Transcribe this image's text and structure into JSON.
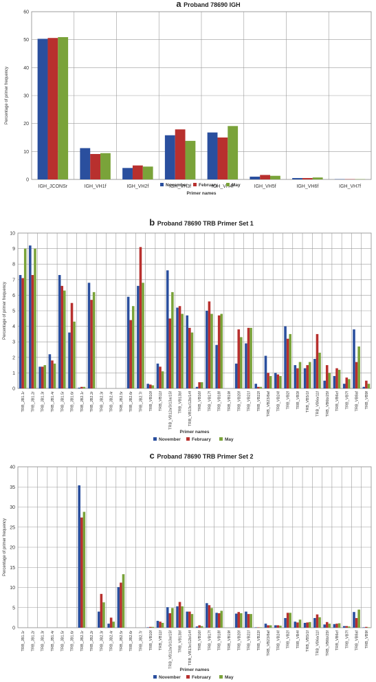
{
  "colors": {
    "november": "#2a4f9e",
    "february": "#b8302e",
    "may": "#7aa33a"
  },
  "legend": [
    "November",
    "February",
    "May"
  ],
  "chart_data": [
    {
      "panel": "a",
      "type": "bar",
      "title": "Proband 78690 IGH",
      "xlabel": "Primer names",
      "ylabel": "Percentage of primer frequency",
      "ylim": [
        0,
        60
      ],
      "yticks": [
        0,
        10,
        20,
        30,
        40,
        50,
        60
      ],
      "grid": true,
      "legend_position": "bottom",
      "categories": [
        "IGH_JCONSr",
        "IGH_VH1f",
        "IGH_VH2f",
        "IGH_VH3f",
        "IGH_VH4f",
        "IGH_VH5f",
        "IGH_VH6f",
        "IGH_VH7f"
      ],
      "series": [
        {
          "name": "November",
          "values": [
            50.3,
            11.2,
            4.1,
            15.8,
            16.8,
            1.0,
            0.5,
            0.1
          ]
        },
        {
          "name": "February",
          "values": [
            50.6,
            9.1,
            5.0,
            17.9,
            15.0,
            1.6,
            0.5,
            0.1
          ]
        },
        {
          "name": "May",
          "values": [
            50.9,
            9.4,
            4.6,
            13.8,
            19.1,
            1.3,
            0.7,
            0.1
          ]
        }
      ]
    },
    {
      "panel": "b",
      "type": "bar",
      "title": "Proband 78690 TRB Primer Set 1",
      "xlabel": "Primer names",
      "ylabel": "Percentage of primer frequency",
      "ylim": [
        0,
        10
      ],
      "yticks": [
        0,
        1,
        2,
        3,
        4,
        5,
        6,
        7,
        8,
        9,
        10
      ],
      "grid": true,
      "legend_position": "bottom",
      "categories": [
        "TRB_JB1.1r",
        "TRB_JB1.2r",
        "TRB_JB1.3r",
        "TRB_JB1.4r",
        "TRB_JB1.5r",
        "TRB_JB1.6r",
        "TRB_JB2.1r",
        "TRB_JB2.2r",
        "TRB_JB2.3r",
        "TRB_JB2.4r",
        "TRB_JB2.5r",
        "TRB_JB2.6r",
        "TRB_JB2.7r",
        "TRB_VB10f",
        "TRB_VB11f",
        "TRB_VB12a/3/13a/15f",
        "TRB_VB13bf",
        "TRB_VB13c/12b/14f",
        "TRB_VB16f",
        "TRB_VB17f",
        "TRB_VB18f",
        "TRB_VB19f",
        "TRB_VB20f",
        "TRB_VB21f",
        "TRB_VB22f",
        "TRB_VB23/8af",
        "TRB_VB24f",
        "TRB_VB2f",
        "TRB_VB3f",
        "TRB_VB5/1f",
        "TRB_VB6a/11f",
        "TRB_VB6b/25f",
        "TRB_VB6cf",
        "TRB_VB7f",
        "TRB_VB8af",
        "TRB_VB9f"
      ],
      "series": [
        {
          "name": "November",
          "values": [
            7.3,
            9.2,
            1.4,
            2.2,
            7.3,
            3.6,
            0.05,
            6.8,
            0,
            0,
            0,
            5.9,
            6.6,
            0.3,
            1.6,
            7.6,
            5.2,
            4.7,
            0.1,
            5.0,
            2.8,
            0,
            1.6,
            2.9,
            0.3,
            2.1,
            1.0,
            4.0,
            1.5,
            1.3,
            1.9,
            0.5,
            0.8,
            0.3,
            3.8,
            0.1
          ]
        },
        {
          "name": "February",
          "values": [
            7.1,
            7.3,
            1.4,
            1.8,
            6.6,
            5.5,
            0.1,
            5.7,
            0,
            0,
            0,
            4.4,
            9.1,
            0.25,
            1.4,
            4.5,
            5.3,
            3.9,
            0.4,
            5.6,
            4.7,
            0,
            3.8,
            3.9,
            0.1,
            1.0,
            0.9,
            3.2,
            1.3,
            1.5,
            3.5,
            1.5,
            1.3,
            0.7,
            1.7,
            0.5
          ]
        },
        {
          "name": "May",
          "values": [
            9.0,
            9.0,
            1.5,
            1.6,
            6.3,
            4.3,
            0.1,
            6.2,
            0,
            0,
            0,
            5.3,
            6.8,
            0.2,
            1.1,
            6.2,
            4.8,
            3.6,
            0.4,
            4.8,
            4.8,
            0,
            3.3,
            3.9,
            0.1,
            0.8,
            0.8,
            3.5,
            1.7,
            1.7,
            2.3,
            1.0,
            1.2,
            0.6,
            2.7,
            0.3
          ]
        }
      ]
    },
    {
      "panel": "c",
      "type": "bar",
      "title": "Proband 78690 TRB Primer Set 2",
      "xlabel": "Primer names",
      "ylabel": "Percentage of primer frequency",
      "ylim": [
        0,
        40
      ],
      "yticks": [
        0,
        5,
        10,
        15,
        20,
        25,
        30,
        35,
        40
      ],
      "grid": true,
      "legend_position": "bottom",
      "categories": [
        "TRB_JB1.1r",
        "TRB_JB1.2r",
        "TRB_JB1.3r",
        "TRB_JB1.4r",
        "TRB_JB1.5r",
        "TRB_JB1.6r",
        "TRB_JB2.1r",
        "TRB_JB2.2r",
        "TRB_JB2.3r",
        "TRB_JB2.4r",
        "TRB_JB2.5r",
        "TRB_JB2.6r",
        "TRB_JB2.7r",
        "TRB_VB10f",
        "TRB_VB11f",
        "TRB_VB12a/3/13a/15f",
        "TRB_VB13bf",
        "TRB_VB13c/12b/14f",
        "TRB_VB16f",
        "TRB_VB17f",
        "TRB_VB18f",
        "TRB_VB19f",
        "TRB_VB20f",
        "TRB_VB21f",
        "TRB_VB22f",
        "TRB_VB23/8af",
        "TRB_VB24f",
        "TRB_VB2f",
        "TRB_VB4f",
        "TRB_VB5/1f",
        "TRB_VB6a/11f",
        "TRB_VB6b/25f",
        "TRB_VB6cf",
        "TRB_VB7f",
        "TRB_VB8af",
        "TRB_VB9f"
      ],
      "series": [
        {
          "name": "November",
          "values": [
            0,
            0,
            0,
            0,
            0,
            0,
            35.4,
            0,
            4.0,
            1.0,
            10.1,
            0,
            0,
            0.1,
            1.7,
            5.1,
            5.3,
            4.0,
            0.3,
            6.1,
            3.7,
            0,
            3.5,
            4.0,
            0.1,
            1.0,
            0.6,
            2.4,
            1.5,
            1.2,
            2.4,
            0.8,
            0.9,
            0.4,
            3.9,
            0.1
          ]
        },
        {
          "name": "February",
          "values": [
            0,
            0,
            0,
            0,
            0,
            0,
            27.4,
            0,
            8.4,
            2.5,
            11.2,
            0,
            0,
            0.2,
            1.5,
            3.6,
            6.4,
            4.0,
            0.6,
            5.6,
            3.6,
            0,
            3.9,
            3.4,
            0.1,
            0.6,
            0.6,
            3.7,
            1.3,
            1.3,
            3.3,
            1.4,
            1.0,
            0.4,
            2.4,
            0.2
          ]
        },
        {
          "name": "May",
          "values": [
            0,
            0,
            0,
            0,
            0,
            0,
            28.8,
            0,
            6.3,
            1.5,
            13.3,
            0,
            0,
            0.2,
            1.2,
            4.9,
            5.3,
            3.4,
            0.4,
            4.9,
            4.2,
            0,
            3.6,
            3.4,
            0.1,
            0.6,
            0.5,
            3.7,
            2.0,
            1.4,
            2.6,
            1.0,
            1.1,
            0.3,
            4.5,
            0.1
          ]
        }
      ]
    }
  ]
}
